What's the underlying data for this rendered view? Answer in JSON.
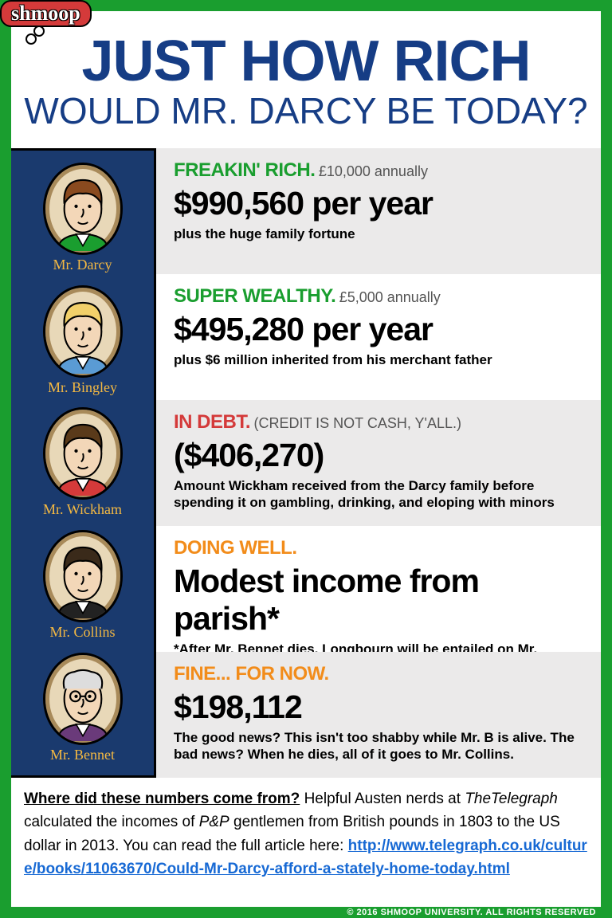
{
  "logo": "shmoop",
  "title": {
    "line1": "JUST HOW RICH",
    "line2": "WOULD MR. DARCY BE TODAY?"
  },
  "characters": [
    {
      "name": "Mr. Darcy",
      "face": {
        "skin": "#f3d7b8",
        "hair": "#8a4a1f",
        "coat": "#1a9e2f"
      }
    },
    {
      "name": "Mr. Bingley",
      "face": {
        "skin": "#f3d7b8",
        "hair": "#f2d06a",
        "coat": "#5a9bd4"
      }
    },
    {
      "name": "Mr. Wickham",
      "face": {
        "skin": "#f3d7b8",
        "hair": "#5a3a1a",
        "coat": "#d43a3a"
      }
    },
    {
      "name": "Mr. Collins",
      "face": {
        "skin": "#f3d7b8",
        "hair": "#3a2a1a",
        "coat": "#222222"
      }
    },
    {
      "name": "Mr. Bennet",
      "face": {
        "skin": "#f3d7b8",
        "hair": "#dddddd",
        "coat": "#6a3a7a"
      }
    }
  ],
  "cards": [
    {
      "bg": "gray",
      "cat": "FREAKIN' RICH.",
      "cat_color": "cat-green",
      "sub": "£10,000 annually",
      "big": "$990,560 per year",
      "desc": "plus the huge family fortune"
    },
    {
      "bg": "white",
      "cat": "SUPER WEALTHY.",
      "cat_color": "cat-green",
      "sub": "£5,000 annually",
      "big": "$495,280 per year",
      "desc": "plus $6 million inherited from his merchant father"
    },
    {
      "bg": "gray",
      "cat": "IN DEBT.",
      "cat_color": "cat-red",
      "sub": "(CREDIT IS NOT CASH, Y'ALL.)",
      "big": "($406,270)",
      "desc": "Amount Wickham received from the Darcy family before spending it on gambling, drinking, and eloping with minors"
    },
    {
      "bg": "white",
      "cat": "DOING WELL.",
      "cat_color": "cat-orange",
      "sub": "",
      "big": "Modest income from parish*",
      "desc": "*After Mr. Bennet dies, Longbourn will be entailed on Mr. Collins, meaning he will get an additional $198,112 per year, plus the estate."
    },
    {
      "bg": "gray",
      "cat": "FINE... FOR NOW.",
      "cat_color": "cat-orange",
      "sub": "",
      "big": "$198,112",
      "desc": "The good news? This isn't too shabby while Mr. B is alive. The bad news? When he dies, all of it goes to Mr. Collins."
    }
  ],
  "footnote": {
    "q": "Where did these numbers come from?",
    "text1": " Helpful Austen nerds at ",
    "source": "TheTelegraph",
    "text2": " calculated the incomes of ",
    "pp": "P&P",
    "text3": " gentlemen from British pounds in 1803 to the US dollar in 2013. You can read the full article here: ",
    "url": "http://www.telegraph.co.uk/culture/books/11063670/Could-Mr-Darcy-afford-a-stately-home-today.html"
  },
  "copyright": "© 2016 SHMOOP UNIVERSITY. ALL RIGHTS RESERVED"
}
